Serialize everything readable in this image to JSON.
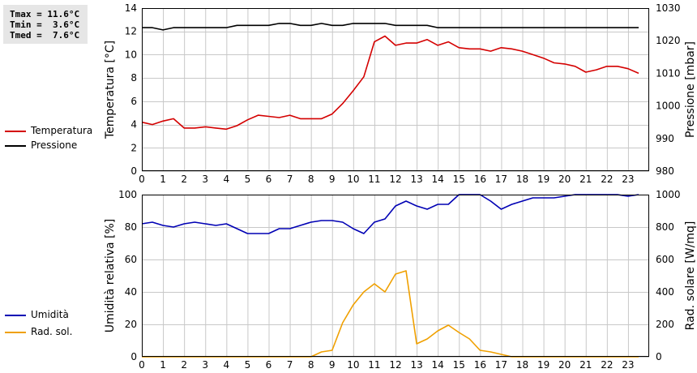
{
  "stats": {
    "tmax": "Tmax = 11.6°C",
    "tmin": "Tmin =  3.6°C",
    "tmed": "Tmed =  7.6°C"
  },
  "legend_top": [
    {
      "label": "Temperatura",
      "color": "#d40000"
    },
    {
      "label": "Pressione",
      "color": "#000000"
    }
  ],
  "legend_bottom": [
    {
      "label": "Umidità",
      "color": "#0000b4"
    },
    {
      "label": "Rad. sol.",
      "color": "#f0a000"
    }
  ],
  "chart_data": [
    {
      "type": "line",
      "xlim": [
        0,
        24
      ],
      "x_ticks": [
        0,
        1,
        2,
        3,
        4,
        5,
        6,
        7,
        8,
        9,
        10,
        11,
        12,
        13,
        14,
        15,
        16,
        17,
        18,
        19,
        20,
        21,
        22,
        23
      ],
      "ylabel_left": "Temperatura [°C]",
      "ylabel_right": "Pressione [mbar]",
      "ylim_left": [
        0,
        14
      ],
      "ylim_right": [
        980,
        1030
      ],
      "y_ticks_left": [
        0,
        2,
        4,
        6,
        8,
        10,
        12,
        14
      ],
      "y_ticks_right": [
        980,
        990,
        1000,
        1010,
        1020,
        1030
      ],
      "grid": true,
      "series": [
        {
          "name": "Temperatura",
          "axis": "left",
          "color": "#d40000",
          "x": [
            0,
            0.5,
            1,
            1.5,
            2,
            2.5,
            3,
            3.5,
            4,
            4.5,
            5,
            5.5,
            6,
            6.5,
            7,
            7.5,
            8,
            8.5,
            9,
            9.5,
            10,
            10.5,
            11,
            11.5,
            12,
            12.5,
            13,
            13.5,
            14,
            14.5,
            15,
            15.5,
            16,
            16.5,
            17,
            17.5,
            18,
            18.5,
            19,
            19.5,
            20,
            20.5,
            21,
            21.5,
            22,
            22.5,
            23,
            23.5
          ],
          "values": [
            4.2,
            4.0,
            4.3,
            4.5,
            3.7,
            3.7,
            3.8,
            3.7,
            3.6,
            3.9,
            4.4,
            4.8,
            4.7,
            4.6,
            4.8,
            4.5,
            4.5,
            4.5,
            4.9,
            5.8,
            6.9,
            8.1,
            11.1,
            11.6,
            10.8,
            11.0,
            11.0,
            11.3,
            10.8,
            11.1,
            10.6,
            10.5,
            10.5,
            10.3,
            10.6,
            10.5,
            10.3,
            10.0,
            9.7,
            9.3,
            9.2,
            9.0,
            8.5,
            8.7,
            9.0,
            9.0,
            8.8,
            8.4
          ]
        },
        {
          "name": "Pressione",
          "axis": "right",
          "color": "#000000",
          "x": [
            0,
            0.5,
            1,
            1.5,
            2,
            2.5,
            3,
            3.5,
            4,
            4.5,
            5,
            5.5,
            6,
            6.5,
            7,
            7.5,
            8,
            8.5,
            9,
            9.5,
            10,
            10.5,
            11,
            11.5,
            12,
            12.5,
            13,
            13.5,
            14,
            14.5,
            15,
            15.5,
            16,
            16.5,
            17,
            17.5,
            18,
            18.5,
            19,
            19.5,
            20,
            20.5,
            21,
            21.5,
            22,
            22.5,
            23,
            23.5
          ],
          "values": [
            1024,
            1024,
            1023.3,
            1024,
            1024,
            1024,
            1024,
            1024,
            1024,
            1024.7,
            1024.7,
            1024.7,
            1024.7,
            1025.3,
            1025.3,
            1024.7,
            1024.7,
            1025.3,
            1024.7,
            1024.7,
            1025.3,
            1025.3,
            1025.3,
            1025.3,
            1024.7,
            1024.7,
            1024.7,
            1024.7,
            1024,
            1024,
            1024,
            1024,
            1024,
            1024,
            1024,
            1024,
            1024,
            1024,
            1024,
            1024,
            1024,
            1024,
            1024,
            1024,
            1024,
            1024,
            1024,
            1024
          ]
        }
      ]
    },
    {
      "type": "line",
      "xlim": [
        0,
        24
      ],
      "x_ticks": [
        0,
        1,
        2,
        3,
        4,
        5,
        6,
        7,
        8,
        9,
        10,
        11,
        12,
        13,
        14,
        15,
        16,
        17,
        18,
        19,
        20,
        21,
        22,
        23
      ],
      "ylabel_left": "Umidità relativa [%]",
      "ylabel_right": "Rad. solare [W/mq]",
      "ylim_left": [
        0,
        100
      ],
      "ylim_right": [
        0,
        1000
      ],
      "y_ticks_left": [
        0,
        20,
        40,
        60,
        80,
        100
      ],
      "y_ticks_right": [
        0,
        200,
        400,
        600,
        800,
        1000
      ],
      "grid": true,
      "series": [
        {
          "name": "Umidità",
          "axis": "left",
          "color": "#0000b4",
          "x": [
            0,
            0.5,
            1,
            1.5,
            2,
            2.5,
            3,
            3.5,
            4,
            4.5,
            5,
            5.5,
            6,
            6.5,
            7,
            7.5,
            8,
            8.5,
            9,
            9.5,
            10,
            10.5,
            11,
            11.5,
            12,
            12.5,
            13,
            13.5,
            14,
            14.5,
            15,
            15.5,
            16,
            16.5,
            17,
            17.5,
            18,
            18.5,
            19,
            19.5,
            20,
            20.5,
            21,
            21.5,
            22,
            22.5,
            23,
            23.5
          ],
          "values": [
            82,
            83,
            81,
            80,
            82,
            83,
            82,
            81,
            82,
            79,
            76,
            76,
            76,
            79,
            79,
            81,
            83,
            84,
            84,
            83,
            79,
            76,
            83,
            85,
            93,
            96,
            93,
            91,
            94,
            94,
            100,
            100,
            100,
            96,
            91,
            94,
            96,
            98,
            98,
            98,
            99,
            100,
            100,
            100,
            100,
            100,
            99,
            100
          ]
        },
        {
          "name": "Rad. sol.",
          "axis": "right",
          "color": "#f0a000",
          "x": [
            0,
            0.5,
            1,
            1.5,
            2,
            2.5,
            3,
            3.5,
            4,
            4.5,
            5,
            5.5,
            6,
            6.5,
            7,
            7.5,
            8,
            8.5,
            9,
            9.5,
            10,
            10.5,
            11,
            11.5,
            12,
            12.5,
            13,
            13.5,
            14,
            14.5,
            15,
            15.5,
            16,
            16.5,
            17,
            17.5,
            18,
            18.5,
            19,
            19.5,
            20,
            20.5,
            21,
            21.5,
            22,
            22.5,
            23,
            23.5
          ],
          "values": [
            0,
            0,
            0,
            0,
            0,
            0,
            0,
            0,
            0,
            0,
            0,
            0,
            0,
            0,
            0,
            0,
            0,
            30,
            40,
            210,
            320,
            400,
            450,
            400,
            510,
            530,
            80,
            110,
            160,
            195,
            150,
            110,
            40,
            30,
            15,
            0,
            0,
            0,
            0,
            0,
            0,
            0,
            0,
            0,
            0,
            0,
            0,
            0
          ]
        }
      ]
    }
  ]
}
